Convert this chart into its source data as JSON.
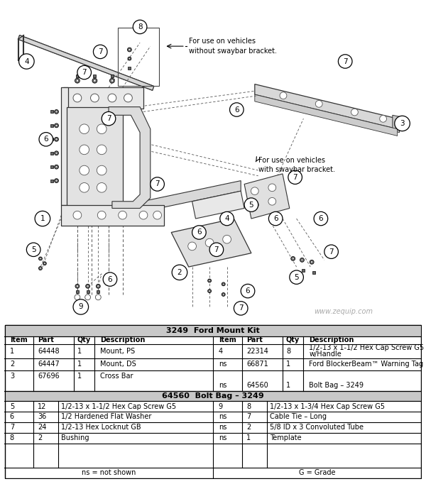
{
  "watermark": "www.zequip.com",
  "table_title1": "3249  Ford Mount Kit",
  "table_title2": "64560  Bolt Bag – 3249",
  "annotation1": "For use on vehicles\nwithout swaybar bracket.",
  "annotation2": "For use on vehicles\nwith swaybar bracket.",
  "table1_rows": [
    [
      "1",
      "64448",
      "1",
      "Mount, PS",
      "4",
      "22314",
      "8",
      "1/2-13 x 1-1/2 Hex Cap Screw G5\nw/Handle"
    ],
    [
      "2",
      "64447",
      "1",
      "Mount, DS",
      "ns",
      "66871",
      "1",
      "Ford BlockerBeam™ Warning Tag"
    ],
    [
      "3",
      "67696",
      "1",
      "Cross Bar",
      "ns",
      "64560",
      "1",
      "Bolt Bag – 3249"
    ]
  ],
  "table2_rows": [
    [
      "5",
      "12",
      "1/2-13 x 1-1/2 Hex Cap Screw G5",
      "9",
      "8",
      "1/2-13 x 1-3/4 Hex Cap Screw G5"
    ],
    [
      "6",
      "36",
      "1/2 Hardened Flat Washer",
      "ns",
      "7",
      "Cable Tie – Long"
    ],
    [
      "7",
      "24",
      "1/2-13 Hex Locknut GB",
      "ns",
      "2",
      "5/8 ID x 3 Convoluted Tube"
    ],
    [
      "8",
      "2",
      "Bushing",
      "ns",
      "1",
      "Template"
    ]
  ],
  "footer_left": "ns = not shown",
  "footer_right": "G = Grade",
  "bg": "#ffffff",
  "table_header_bg": "#c8c8c8",
  "table_section_bg": "#c8c8c8"
}
